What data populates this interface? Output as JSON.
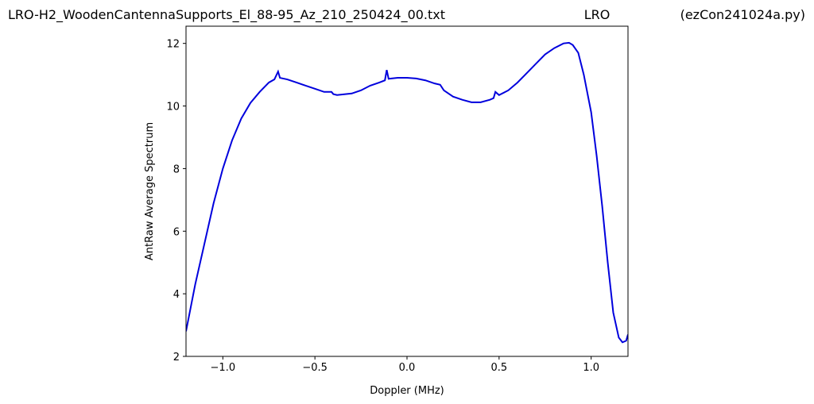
{
  "chart_data": {
    "type": "line",
    "title": "LRO-H2_WoodenCantennaSupports_El_88-95_Az_210_250424_00.txt",
    "title_center": "LRO",
    "title_right": "(ezCon241024a.py)",
    "xlabel": "Doppler (MHz)",
    "ylabel": "AntRaw Average Spectrum",
    "xlim": [
      -1.2,
      1.2
    ],
    "ylim": [
      2,
      12.55
    ],
    "xticks": [
      {
        "value": -1.0,
        "label": "−1.0"
      },
      {
        "value": -0.5,
        "label": "−0.5"
      },
      {
        "value": 0.0,
        "label": "0.0"
      },
      {
        "value": 0.5,
        "label": "0.5"
      },
      {
        "value": 1.0,
        "label": "1.0"
      }
    ],
    "yticks": [
      2,
      4,
      6,
      8,
      10,
      12
    ],
    "series": [
      {
        "color": "#0000dd",
        "x": [
          -1.2,
          -1.15,
          -1.1,
          -1.05,
          -1.0,
          -0.95,
          -0.9,
          -0.85,
          -0.8,
          -0.75,
          -0.72,
          -0.7,
          -0.69,
          -0.65,
          -0.6,
          -0.55,
          -0.5,
          -0.45,
          -0.41,
          -0.4,
          -0.38,
          -0.3,
          -0.25,
          -0.2,
          -0.15,
          -0.12,
          -0.11,
          -0.1,
          -0.05,
          0.0,
          0.05,
          0.1,
          0.15,
          0.18,
          0.2,
          0.25,
          0.3,
          0.35,
          0.4,
          0.45,
          0.47,
          0.48,
          0.5,
          0.55,
          0.6,
          0.65,
          0.7,
          0.75,
          0.8,
          0.85,
          0.88,
          0.9,
          0.93,
          0.96,
          1.0,
          1.03,
          1.06,
          1.09,
          1.12,
          1.15,
          1.17,
          1.19,
          1.2
        ],
        "values": [
          2.8,
          4.3,
          5.6,
          6.9,
          8.0,
          8.9,
          9.6,
          10.1,
          10.45,
          10.75,
          10.85,
          11.1,
          10.9,
          10.85,
          10.75,
          10.65,
          10.55,
          10.45,
          10.45,
          10.38,
          10.35,
          10.4,
          10.5,
          10.65,
          10.75,
          10.82,
          11.15,
          10.87,
          10.9,
          10.9,
          10.88,
          10.82,
          10.72,
          10.68,
          10.5,
          10.3,
          10.2,
          10.12,
          10.12,
          10.2,
          10.25,
          10.45,
          10.35,
          10.5,
          10.75,
          11.05,
          11.35,
          11.65,
          11.85,
          12.0,
          12.02,
          11.95,
          11.7,
          11.0,
          9.8,
          8.4,
          6.8,
          5.0,
          3.4,
          2.6,
          2.45,
          2.5,
          2.7
        ]
      }
    ]
  }
}
